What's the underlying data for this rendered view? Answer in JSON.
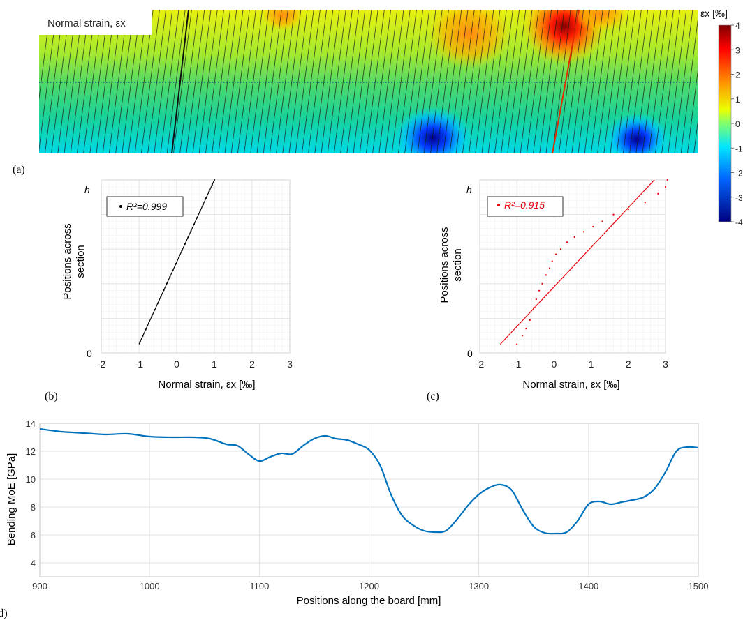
{
  "colors": {
    "line_blue": "#0072bd",
    "fit_red": "#e8000b",
    "grid": "#e0e0e0",
    "grid_minor": "#f0f0f0"
  },
  "panels": {
    "a": {
      "label": "(a)",
      "field_title": "Normal strain, εx",
      "colorbar_label": "εx [‰]",
      "colorbar_ticks": [
        "4",
        "3",
        "2",
        "1",
        "0",
        "-1",
        "-2",
        "-3",
        "-4"
      ]
    },
    "b": {
      "label": "(b)",
      "xlabel": "Normal strain, εx [‰]",
      "ylabel_line1": "Positions across",
      "ylabel_line2": "section",
      "ytick_top": "h",
      "ytick_bottom": "0",
      "legend": "R²=0.999"
    },
    "c": {
      "label": "(c)",
      "xlabel": "Normal strain, εx [‰]",
      "ylabel_line1": "Positions across",
      "ylabel_line2": "section",
      "ytick_top": "h",
      "ytick_bottom": "0",
      "legend": "R²=0.915"
    },
    "d": {
      "label": "(d)",
      "xlabel": "Positions along the board [mm]",
      "ylabel": "Bending MoE [GPa]"
    }
  },
  "chart_data": [
    {
      "type": "heatmap",
      "title": "Normal strain, εx",
      "colorbar_label": "εx [‰]",
      "range": [
        -4,
        4
      ],
      "hotspots": [
        {
          "x": 0.43,
          "y": 0.05,
          "value": 1.6
        },
        {
          "x": 0.66,
          "y": 0.2,
          "value": 2.2
        },
        {
          "x": 0.8,
          "y": 0.08,
          "value": 3.5
        },
        {
          "x": 0.86,
          "y": 0.0,
          "value": 2.0
        },
        {
          "x": 0.6,
          "y": 0.92,
          "value": -3.8
        },
        {
          "x": 0.91,
          "y": 0.92,
          "value": -3.0
        }
      ]
    },
    {
      "type": "scatter",
      "panel": "b",
      "xlabel": "Normal strain, εx [‰]",
      "ylabel": "Positions across section",
      "xlim": [
        -2,
        3
      ],
      "xticks": [
        -2,
        -1,
        0,
        1,
        2,
        3
      ],
      "legend": "R²=0.999",
      "points_x": [
        -0.97,
        -0.9,
        -0.82,
        -0.74,
        -0.66,
        -0.58,
        -0.5,
        -0.42,
        -0.34,
        -0.26,
        -0.18,
        -0.1,
        -0.02,
        0.06,
        0.14,
        0.22,
        0.3,
        0.38,
        0.46,
        0.54,
        0.62,
        0.7,
        0.78,
        0.86,
        0.94,
        1.0
      ],
      "fit": {
        "x": [
          -1.0,
          1.0
        ],
        "y": [
          0.05,
          1.0
        ]
      }
    },
    {
      "type": "scatter",
      "panel": "c",
      "xlabel": "Normal strain, εx [‰]",
      "ylabel": "Positions across section",
      "xlim": [
        -2,
        3
      ],
      "xticks": [
        -2,
        -1,
        0,
        1,
        2,
        3
      ],
      "legend": "R²=0.915",
      "points": [
        [
          -1.0,
          0.05
        ],
        [
          -0.85,
          0.1
        ],
        [
          -0.75,
          0.14
        ],
        [
          -0.65,
          0.19
        ],
        [
          -0.55,
          0.26
        ],
        [
          -0.48,
          0.31
        ],
        [
          -0.4,
          0.36
        ],
        [
          -0.32,
          0.4
        ],
        [
          -0.22,
          0.45
        ],
        [
          -0.12,
          0.49
        ],
        [
          -0.05,
          0.53
        ],
        [
          0.05,
          0.57
        ],
        [
          0.18,
          0.6
        ],
        [
          0.35,
          0.64
        ],
        [
          0.55,
          0.67
        ],
        [
          0.8,
          0.7
        ],
        [
          1.05,
          0.73
        ],
        [
          1.3,
          0.76
        ],
        [
          1.6,
          0.8
        ],
        [
          2.0,
          0.83
        ],
        [
          2.45,
          0.87
        ],
        [
          2.8,
          0.92
        ],
        [
          3.0,
          0.96
        ],
        [
          3.05,
          1.0
        ]
      ],
      "fit": {
        "x": [
          -1.45,
          2.7
        ],
        "y": [
          0.05,
          1.0
        ]
      }
    },
    {
      "type": "line",
      "panel": "d",
      "xlabel": "Positions along the board [mm]",
      "ylabel": "Bending MoE [GPa]",
      "xlim": [
        900,
        1500
      ],
      "ylim": [
        3,
        14
      ],
      "xticks": [
        900,
        1000,
        1100,
        1200,
        1300,
        1400,
        1500
      ],
      "yticks": [
        4,
        6,
        8,
        10,
        12,
        14
      ],
      "x": [
        900,
        920,
        940,
        960,
        980,
        1000,
        1020,
        1040,
        1055,
        1070,
        1080,
        1090,
        1100,
        1110,
        1120,
        1130,
        1140,
        1150,
        1160,
        1170,
        1180,
        1190,
        1200,
        1210,
        1220,
        1230,
        1240,
        1250,
        1260,
        1270,
        1280,
        1290,
        1300,
        1310,
        1320,
        1330,
        1340,
        1350,
        1360,
        1370,
        1380,
        1390,
        1400,
        1410,
        1420,
        1430,
        1440,
        1450,
        1460,
        1470,
        1480,
        1490,
        1500
      ],
      "y": [
        13.6,
        13.4,
        13.3,
        13.2,
        13.25,
        13.05,
        13.0,
        13.0,
        12.9,
        12.5,
        12.4,
        11.8,
        11.3,
        11.6,
        11.85,
        11.8,
        12.4,
        12.9,
        13.1,
        12.9,
        12.8,
        12.5,
        12.1,
        11.0,
        8.9,
        7.4,
        6.7,
        6.3,
        6.2,
        6.3,
        7.1,
        8.1,
        8.9,
        9.4,
        9.6,
        9.2,
        7.8,
        6.6,
        6.15,
        6.1,
        6.2,
        7.0,
        8.2,
        8.4,
        8.2,
        8.35,
        8.5,
        8.7,
        9.3,
        10.5,
        12.0,
        12.3,
        12.25
      ]
    }
  ]
}
